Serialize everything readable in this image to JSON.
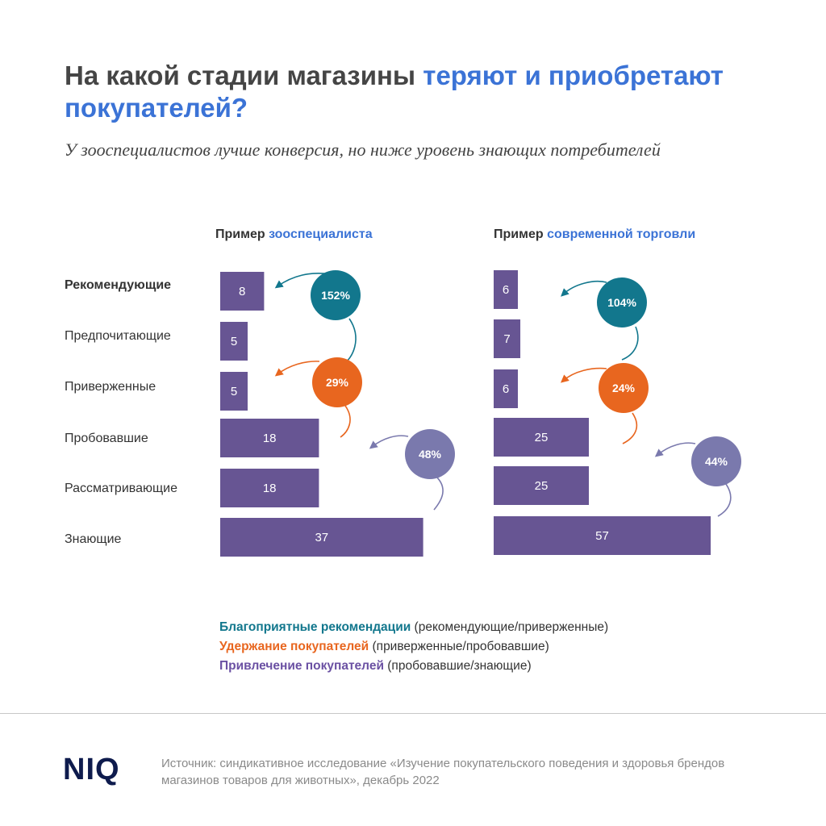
{
  "header": {
    "title_part1": "На какой стадии магазины ",
    "title_highlight": "теряют и приобретают покупателей?",
    "subtitle": "У зооспециалистов лучше конверсия, но ниже уровень знающих потребителей"
  },
  "panels": {
    "left": {
      "title_prefix": "Пример ",
      "title_highlight": "зооспециалиста"
    },
    "right": {
      "title_prefix": "Пример ",
      "title_highlight": "современной торговли"
    }
  },
  "categories": [
    "Рекомендующие",
    "Предпочитающие",
    "Приверженные",
    "Пробовавшие",
    "Рассматривающие",
    "Знающие"
  ],
  "chart_data": [
    {
      "type": "bar",
      "orientation": "horizontal",
      "title": "Пример зооспециалиста",
      "categories": [
        "Рекомендующие",
        "Предпочитающие",
        "Приверженные",
        "Пробовавшие",
        "Рассматривающие",
        "Знающие"
      ],
      "values": [
        8,
        5,
        5,
        18,
        18,
        37
      ],
      "conversions": [
        {
          "label": "152%",
          "type": "recommendation"
        },
        {
          "label": "29%",
          "type": "retention"
        },
        {
          "label": "48%",
          "type": "acquisition"
        }
      ]
    },
    {
      "type": "bar",
      "orientation": "horizontal",
      "title": "Пример современной торговли",
      "categories": [
        "Рекомендующие",
        "Предпочитающие",
        "Приверженные",
        "Пробовавшие",
        "Рассматривающие",
        "Знающие"
      ],
      "values": [
        6,
        7,
        6,
        25,
        25,
        57
      ],
      "conversions": [
        {
          "label": "104%",
          "type": "recommendation"
        },
        {
          "label": "24%",
          "type": "retention"
        },
        {
          "label": "44%",
          "type": "acquisition"
        }
      ]
    }
  ],
  "colors": {
    "bar": "#675593",
    "recommendation": "#12778d",
    "retention": "#e8661f",
    "acquisition": "#7a79ad",
    "title_highlight": "#3b73d6"
  },
  "legend": [
    {
      "key": "recommendation",
      "label": "Благоприятные рекомендации",
      "note": " (рекомендующие/приверженные)"
    },
    {
      "key": "retention",
      "label": "Удержание покупателей",
      "note": " (приверженные/пробовавшие)"
    },
    {
      "key": "acquisition",
      "label": "Привлечение покупателей",
      "note": " (пробовавшие/знающие)"
    }
  ],
  "footer": {
    "logo": "NIQ",
    "source": "Источник: синдикативное исследование «Изучение покупательского поведения и здоровья брендов магазинов товаров для животных», декабрь 2022"
  }
}
